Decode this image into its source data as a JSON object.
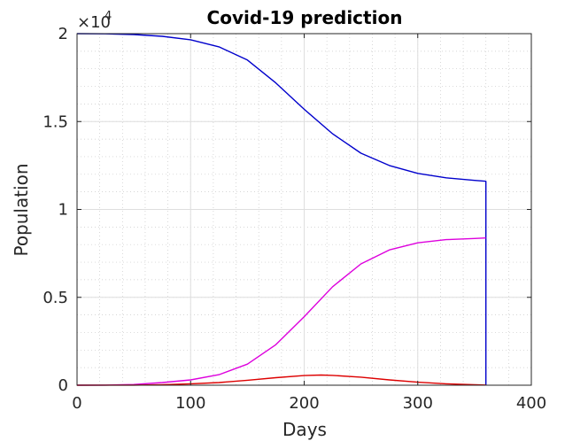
{
  "chart_data": {
    "type": "line",
    "title": "Covid-19 prediction",
    "xlabel": "Days",
    "ylabel": "Population",
    "y_exponent_label": "×10",
    "y_exponent_power": "4",
    "xlim": [
      0,
      400
    ],
    "ylim": [
      0,
      20000
    ],
    "x_ticks": [
      0,
      100,
      200,
      300,
      400
    ],
    "x_tick_labels": [
      "0",
      "100",
      "200",
      "300",
      "400"
    ],
    "y_ticks": [
      0,
      5000,
      10000,
      15000,
      20000
    ],
    "y_tick_labels": [
      "0",
      "0.5",
      "1",
      "1.5",
      "2"
    ],
    "grid": "major and minor",
    "colors": {
      "blue": "#0000cc",
      "magenta": "#dd00dd",
      "red": "#dd0000",
      "axis": "#262626"
    },
    "series": [
      {
        "color": "blue",
        "x": [
          0,
          25,
          50,
          75,
          100,
          125,
          150,
          175,
          200,
          225,
          250,
          275,
          300,
          325,
          350,
          360,
          360
        ],
        "y": [
          20000,
          19990,
          19950,
          19850,
          19650,
          19250,
          18500,
          17200,
          15700,
          14300,
          13200,
          12500,
          12050,
          11800,
          11650,
          11600,
          0
        ]
      },
      {
        "color": "magenta",
        "x": [
          0,
          25,
          50,
          75,
          100,
          125,
          150,
          175,
          200,
          225,
          250,
          275,
          300,
          325,
          350,
          360
        ],
        "y": [
          0,
          5,
          40,
          150,
          300,
          600,
          1200,
          2300,
          3900,
          5600,
          6900,
          7700,
          8100,
          8280,
          8350,
          8380
        ]
      },
      {
        "color": "red",
        "x": [
          0,
          50,
          75,
          100,
          125,
          150,
          175,
          200,
          215,
          225,
          250,
          275,
          300,
          325,
          350,
          360
        ],
        "y": [
          0,
          5,
          30,
          80,
          150,
          280,
          430,
          550,
          580,
          560,
          460,
          300,
          170,
          80,
          25,
          10
        ]
      }
    ]
  }
}
